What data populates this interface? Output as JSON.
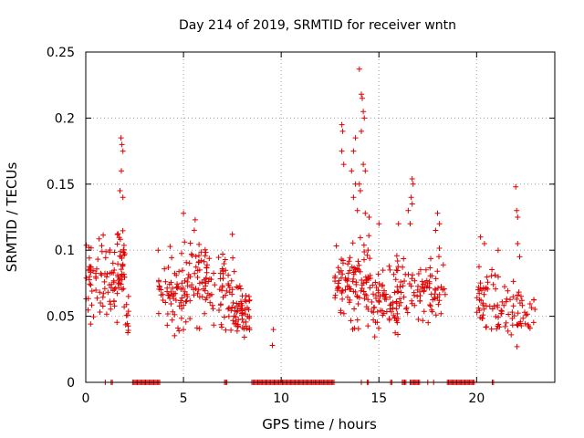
{
  "chart_data": {
    "type": "scatter",
    "title": "Day 214 of 2019, SRMTID for receiver wntn",
    "xlabel": "GPS time / hours",
    "ylabel": "SRMTID / TECUs",
    "xlim": [
      0,
      24
    ],
    "ylim": [
      0,
      0.25
    ],
    "x_ticks": [
      0,
      5,
      10,
      15,
      20
    ],
    "y_ticks": [
      0,
      0.05,
      0.1,
      0.15,
      0.2,
      0.25
    ],
    "x_tick_labels": [
      "0",
      "5",
      "10",
      "15",
      "20"
    ],
    "y_tick_labels": [
      "0",
      "0.05",
      "0.1",
      "0.15",
      "0.2",
      "0.25"
    ],
    "grid": true,
    "marker": "+",
    "color": "#e00000",
    "clusters": [
      {
        "x_start": 0.0,
        "x_end": 0.6,
        "count": 30,
        "y_min": 0.03,
        "y_max": 0.125
      },
      {
        "x_start": 0.6,
        "x_end": 1.6,
        "count": 45,
        "y_min": 0.035,
        "y_max": 0.12
      },
      {
        "x_start": 1.6,
        "x_end": 2.0,
        "count": 40,
        "y_min": 0.05,
        "y_max": 0.13
      },
      {
        "x_start": 2.0,
        "x_end": 2.2,
        "count": 10,
        "y_min": 0.03,
        "y_max": 0.07
      },
      {
        "x_start": 3.7,
        "x_end": 5.0,
        "count": 60,
        "y_min": 0.025,
        "y_max": 0.11
      },
      {
        "x_start": 5.0,
        "x_end": 6.6,
        "count": 80,
        "y_min": 0.03,
        "y_max": 0.125
      },
      {
        "x_start": 6.8,
        "x_end": 7.6,
        "count": 45,
        "y_min": 0.025,
        "y_max": 0.11
      },
      {
        "x_start": 7.6,
        "x_end": 8.4,
        "count": 55,
        "y_min": 0.025,
        "y_max": 0.085
      },
      {
        "x_start": 12.7,
        "x_end": 13.5,
        "count": 40,
        "y_min": 0.04,
        "y_max": 0.11
      },
      {
        "x_start": 13.5,
        "x_end": 14.5,
        "count": 60,
        "y_min": 0.03,
        "y_max": 0.12
      },
      {
        "x_start": 14.5,
        "x_end": 16.0,
        "count": 80,
        "y_min": 0.025,
        "y_max": 0.105
      },
      {
        "x_start": 16.0,
        "x_end": 17.5,
        "count": 50,
        "y_min": 0.04,
        "y_max": 0.1
      },
      {
        "x_start": 17.5,
        "x_end": 18.4,
        "count": 35,
        "y_min": 0.04,
        "y_max": 0.11
      },
      {
        "x_start": 20.0,
        "x_end": 21.0,
        "count": 40,
        "y_min": 0.03,
        "y_max": 0.1
      },
      {
        "x_start": 21.0,
        "x_end": 23.0,
        "count": 60,
        "y_min": 0.02,
        "y_max": 0.085
      }
    ],
    "outliers": [
      {
        "x": 1.8,
        "y": 0.185
      },
      {
        "x": 1.85,
        "y": 0.18
      },
      {
        "x": 1.9,
        "y": 0.175
      },
      {
        "x": 1.82,
        "y": 0.16
      },
      {
        "x": 1.75,
        "y": 0.145
      },
      {
        "x": 1.9,
        "y": 0.14
      },
      {
        "x": 5.0,
        "y": 0.128
      },
      {
        "x": 5.6,
        "y": 0.123
      },
      {
        "x": 7.5,
        "y": 0.112
      },
      {
        "x": 9.6,
        "y": 0.04
      },
      {
        "x": 9.55,
        "y": 0.028
      },
      {
        "x": 13.1,
        "y": 0.195
      },
      {
        "x": 13.15,
        "y": 0.19
      },
      {
        "x": 13.1,
        "y": 0.175
      },
      {
        "x": 13.2,
        "y": 0.165
      },
      {
        "x": 13.7,
        "y": 0.175
      },
      {
        "x": 13.8,
        "y": 0.185
      },
      {
        "x": 13.6,
        "y": 0.16
      },
      {
        "x": 13.7,
        "y": 0.14
      },
      {
        "x": 13.8,
        "y": 0.15
      },
      {
        "x": 14.0,
        "y": 0.237
      },
      {
        "x": 14.1,
        "y": 0.218
      },
      {
        "x": 14.15,
        "y": 0.215
      },
      {
        "x": 14.2,
        "y": 0.205
      },
      {
        "x": 14.25,
        "y": 0.2
      },
      {
        "x": 14.1,
        "y": 0.19
      },
      {
        "x": 14.2,
        "y": 0.165
      },
      {
        "x": 14.3,
        "y": 0.16
      },
      {
        "x": 14.0,
        "y": 0.15
      },
      {
        "x": 14.05,
        "y": 0.145
      },
      {
        "x": 13.9,
        "y": 0.13
      },
      {
        "x": 14.3,
        "y": 0.128
      },
      {
        "x": 14.5,
        "y": 0.125
      },
      {
        "x": 15.0,
        "y": 0.12
      },
      {
        "x": 16.0,
        "y": 0.12
      },
      {
        "x": 16.6,
        "y": 0.12
      },
      {
        "x": 16.5,
        "y": 0.13
      },
      {
        "x": 16.7,
        "y": 0.154
      },
      {
        "x": 16.75,
        "y": 0.15
      },
      {
        "x": 16.65,
        "y": 0.14
      },
      {
        "x": 16.7,
        "y": 0.135
      },
      {
        "x": 18.0,
        "y": 0.128
      },
      {
        "x": 18.1,
        "y": 0.12
      },
      {
        "x": 17.9,
        "y": 0.115
      },
      {
        "x": 20.2,
        "y": 0.11
      },
      {
        "x": 20.4,
        "y": 0.105
      },
      {
        "x": 21.1,
        "y": 0.1
      },
      {
        "x": 22.0,
        "y": 0.148
      },
      {
        "x": 22.05,
        "y": 0.13
      },
      {
        "x": 22.1,
        "y": 0.125
      },
      {
        "x": 22.1,
        "y": 0.105
      },
      {
        "x": 22.2,
        "y": 0.095
      }
    ],
    "zero_segments": [
      [
        1.0,
        1.05
      ],
      [
        1.3,
        1.4
      ],
      [
        2.4,
        3.8
      ],
      [
        7.1,
        7.25
      ],
      [
        8.5,
        12.7
      ],
      [
        14.1,
        14.15
      ],
      [
        14.4,
        14.5
      ],
      [
        15.6,
        15.7
      ],
      [
        16.2,
        16.4
      ],
      [
        16.6,
        17.1
      ],
      [
        17.5,
        17.55
      ],
      [
        17.8,
        17.85
      ],
      [
        18.5,
        19.9
      ],
      [
        20.8,
        20.9
      ]
    ]
  }
}
